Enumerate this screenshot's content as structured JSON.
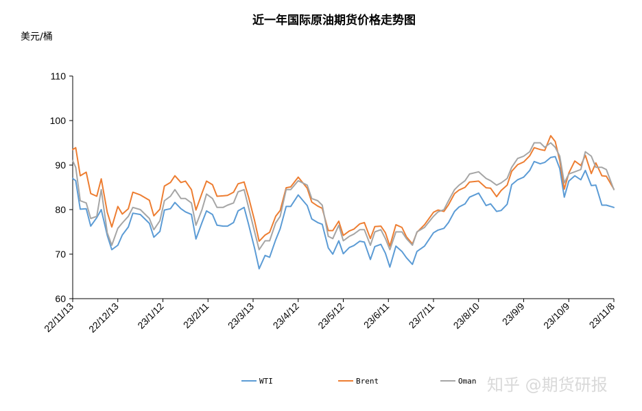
{
  "chart_data": {
    "type": "line",
    "title": "近一年国际原油期货价格走势图",
    "ylabel": "美元/桶",
    "ylim": [
      60,
      110
    ],
    "yticks": [
      60,
      70,
      80,
      90,
      100,
      110
    ],
    "grid": false,
    "legend_position": "bottom",
    "x_tick_labels": [
      "22/11/13",
      "22/12/13",
      "23/1/12",
      "23/2/11",
      "23/3/13",
      "23/4/12",
      "23/5/12",
      "23/6/11",
      "23/7/11",
      "23/8/10",
      "23/9/9",
      "23/10/9",
      "23/11/8"
    ],
    "x_tick_dates": [
      "2022-11-13",
      "2022-12-13",
      "2023-01-12",
      "2023-02-11",
      "2023-03-13",
      "2023-04-12",
      "2023-05-12",
      "2023-06-11",
      "2023-07-11",
      "2023-08-10",
      "2023-09-09",
      "2023-10-09",
      "2023-11-08"
    ],
    "series": [
      {
        "name": "WTI",
        "color": "#5b9bd5",
        "x": [
          "2022-11-13",
          "2022-11-15",
          "2022-11-18",
          "2022-11-22",
          "2022-11-25",
          "2022-11-29",
          "2022-12-02",
          "2022-12-06",
          "2022-12-09",
          "2022-12-13",
          "2022-12-16",
          "2022-12-20",
          "2022-12-23",
          "2022-12-28",
          "2023-01-03",
          "2023-01-06",
          "2023-01-10",
          "2023-01-13",
          "2023-01-17",
          "2023-01-20",
          "2023-01-24",
          "2023-01-27",
          "2023-01-31",
          "2023-02-03",
          "2023-02-07",
          "2023-02-10",
          "2023-02-14",
          "2023-02-17",
          "2023-02-21",
          "2023-02-24",
          "2023-02-28",
          "2023-03-03",
          "2023-03-07",
          "2023-03-10",
          "2023-03-14",
          "2023-03-17",
          "2023-03-21",
          "2023-03-24",
          "2023-03-28",
          "2023-03-31",
          "2023-04-04",
          "2023-04-07",
          "2023-04-12",
          "2023-04-18",
          "2023-04-21",
          "2023-04-25",
          "2023-04-28",
          "2023-05-02",
          "2023-05-05",
          "2023-05-09",
          "2023-05-12",
          "2023-05-16",
          "2023-05-19",
          "2023-05-23",
          "2023-05-26",
          "2023-05-30",
          "2023-06-02",
          "2023-06-06",
          "2023-06-09",
          "2023-06-12",
          "2023-06-16",
          "2023-06-20",
          "2023-06-23",
          "2023-06-27",
          "2023-06-30",
          "2023-07-05",
          "2023-07-11",
          "2023-07-14",
          "2023-07-18",
          "2023-07-21",
          "2023-07-25",
          "2023-07-28",
          "2023-08-01",
          "2023-08-04",
          "2023-08-10",
          "2023-08-15",
          "2023-08-18",
          "2023-08-22",
          "2023-08-25",
          "2023-08-29",
          "2023-09-01",
          "2023-09-05",
          "2023-09-09",
          "2023-09-13",
          "2023-09-16",
          "2023-09-20",
          "2023-09-23",
          "2023-09-27",
          "2023-09-30",
          "2023-10-03",
          "2023-10-06",
          "2023-10-09",
          "2023-10-13",
          "2023-10-17",
          "2023-10-20",
          "2023-10-24",
          "2023-10-27",
          "2023-10-31",
          "2023-11-03",
          "2023-11-08"
        ],
        "values": [
          87.0,
          86.5,
          80.1,
          80.2,
          76.3,
          78.2,
          80.0,
          74.2,
          71.0,
          72.0,
          74.3,
          76.1,
          79.2,
          78.9,
          76.9,
          73.8,
          75.1,
          79.9,
          80.2,
          81.6,
          80.2,
          79.5,
          78.9,
          73.4,
          77.1,
          79.7,
          78.9,
          76.5,
          76.3,
          76.3,
          77.1,
          79.7,
          80.5,
          76.7,
          71.3,
          66.7,
          69.7,
          69.3,
          73.2,
          75.7,
          80.7,
          80.7,
          83.3,
          80.9,
          77.9,
          77.1,
          76.7,
          71.4,
          70.0,
          73.0,
          70.1,
          71.5,
          71.9,
          72.9,
          72.7,
          68.8,
          71.7,
          72.2,
          70.2,
          67.1,
          71.8,
          70.6,
          69.2,
          67.7,
          70.6,
          71.8,
          74.8,
          75.4,
          75.8,
          77.1,
          79.6,
          80.6,
          81.3,
          82.8,
          83.7,
          80.9,
          81.3,
          79.6,
          79.8,
          81.2,
          85.6,
          86.7,
          87.3,
          88.8,
          90.8,
          90.3,
          90.6,
          91.7,
          91.9,
          89.2,
          82.8,
          86.4,
          87.6,
          86.7,
          88.8,
          85.4,
          85.5,
          81.0,
          81.0,
          80.5
        ]
      },
      {
        "name": "Brent",
        "color": "#ed7d31",
        "x": [
          "2022-11-13",
          "2022-11-15",
          "2022-11-18",
          "2022-11-22",
          "2022-11-25",
          "2022-11-29",
          "2022-12-02",
          "2022-12-06",
          "2022-12-09",
          "2022-12-13",
          "2022-12-16",
          "2022-12-20",
          "2022-12-23",
          "2022-12-28",
          "2023-01-03",
          "2023-01-06",
          "2023-01-10",
          "2023-01-13",
          "2023-01-17",
          "2023-01-20",
          "2023-01-24",
          "2023-01-27",
          "2023-01-31",
          "2023-02-03",
          "2023-02-07",
          "2023-02-10",
          "2023-02-14",
          "2023-02-17",
          "2023-02-21",
          "2023-02-24",
          "2023-02-28",
          "2023-03-03",
          "2023-03-07",
          "2023-03-10",
          "2023-03-14",
          "2023-03-17",
          "2023-03-21",
          "2023-03-24",
          "2023-03-28",
          "2023-03-31",
          "2023-04-04",
          "2023-04-07",
          "2023-04-12",
          "2023-04-18",
          "2023-04-21",
          "2023-04-25",
          "2023-04-28",
          "2023-05-02",
          "2023-05-05",
          "2023-05-09",
          "2023-05-12",
          "2023-05-16",
          "2023-05-19",
          "2023-05-23",
          "2023-05-26",
          "2023-05-30",
          "2023-06-02",
          "2023-06-06",
          "2023-06-09",
          "2023-06-12",
          "2023-06-16",
          "2023-06-20",
          "2023-06-23",
          "2023-06-27",
          "2023-06-30",
          "2023-07-05",
          "2023-07-11",
          "2023-07-14",
          "2023-07-18",
          "2023-07-21",
          "2023-07-25",
          "2023-07-28",
          "2023-08-01",
          "2023-08-04",
          "2023-08-10",
          "2023-08-15",
          "2023-08-18",
          "2023-08-22",
          "2023-08-25",
          "2023-08-29",
          "2023-09-01",
          "2023-09-05",
          "2023-09-09",
          "2023-09-13",
          "2023-09-16",
          "2023-09-20",
          "2023-09-23",
          "2023-09-27",
          "2023-09-30",
          "2023-10-03",
          "2023-10-06",
          "2023-10-09",
          "2023-10-13",
          "2023-10-17",
          "2023-10-20",
          "2023-10-24",
          "2023-10-27",
          "2023-10-31",
          "2023-11-03",
          "2023-11-08"
        ],
        "values": [
          93.5,
          93.9,
          87.6,
          88.4,
          83.6,
          83.0,
          86.9,
          79.4,
          76.1,
          80.7,
          79.0,
          80.2,
          83.9,
          83.3,
          82.1,
          78.6,
          80.1,
          85.3,
          86.1,
          87.6,
          86.1,
          86.4,
          84.5,
          79.9,
          83.7,
          86.4,
          85.6,
          83.0,
          83.1,
          83.2,
          83.9,
          85.8,
          86.2,
          82.8,
          77.5,
          72.9,
          74.3,
          74.9,
          78.5,
          79.8,
          84.9,
          85.1,
          87.3,
          84.8,
          81.7,
          80.8,
          80.3,
          75.3,
          75.3,
          77.4,
          74.2,
          75.2,
          75.6,
          76.8,
          77.1,
          73.5,
          76.2,
          76.3,
          74.8,
          71.8,
          76.6,
          76.0,
          73.9,
          72.3,
          74.9,
          76.6,
          79.4,
          79.9,
          79.6,
          81.1,
          83.6,
          84.4,
          85.0,
          86.2,
          86.4,
          84.9,
          84.8,
          82.9,
          84.3,
          85.5,
          88.6,
          90.1,
          90.7,
          92.1,
          93.9,
          93.5,
          93.3,
          96.6,
          95.3,
          91.0,
          84.6,
          88.2,
          90.9,
          89.9,
          92.2,
          88.1,
          90.5,
          87.6,
          87.5,
          84.6
        ]
      },
      {
        "name": "Oman",
        "color": "#a5a5a5",
        "x": [
          "2022-11-13",
          "2022-11-15",
          "2022-11-18",
          "2022-11-22",
          "2022-11-25",
          "2022-11-29",
          "2022-12-02",
          "2022-12-06",
          "2022-12-09",
          "2022-12-13",
          "2022-12-16",
          "2022-12-20",
          "2022-12-23",
          "2022-12-28",
          "2023-01-03",
          "2023-01-06",
          "2023-01-10",
          "2023-01-13",
          "2023-01-17",
          "2023-01-20",
          "2023-01-24",
          "2023-01-27",
          "2023-01-31",
          "2023-02-03",
          "2023-02-07",
          "2023-02-10",
          "2023-02-14",
          "2023-02-17",
          "2023-02-21",
          "2023-02-24",
          "2023-02-28",
          "2023-03-03",
          "2023-03-07",
          "2023-03-10",
          "2023-03-14",
          "2023-03-17",
          "2023-03-21",
          "2023-03-24",
          "2023-03-28",
          "2023-03-31",
          "2023-04-04",
          "2023-04-07",
          "2023-04-12",
          "2023-04-18",
          "2023-04-21",
          "2023-04-25",
          "2023-04-28",
          "2023-05-02",
          "2023-05-05",
          "2023-05-09",
          "2023-05-12",
          "2023-05-16",
          "2023-05-19",
          "2023-05-23",
          "2023-05-26",
          "2023-05-30",
          "2023-06-02",
          "2023-06-06",
          "2023-06-09",
          "2023-06-12",
          "2023-06-16",
          "2023-06-20",
          "2023-06-23",
          "2023-06-27",
          "2023-06-30",
          "2023-07-05",
          "2023-07-11",
          "2023-07-14",
          "2023-07-18",
          "2023-07-21",
          "2023-07-25",
          "2023-07-28",
          "2023-08-01",
          "2023-08-04",
          "2023-08-10",
          "2023-08-15",
          "2023-08-18",
          "2023-08-22",
          "2023-08-25",
          "2023-08-29",
          "2023-09-01",
          "2023-09-05",
          "2023-09-09",
          "2023-09-13",
          "2023-09-16",
          "2023-09-20",
          "2023-09-23",
          "2023-09-27",
          "2023-09-30",
          "2023-10-03",
          "2023-10-06",
          "2023-10-09",
          "2023-10-13",
          "2023-10-17",
          "2023-10-20",
          "2023-10-24",
          "2023-10-27",
          "2023-10-31",
          "2023-11-03",
          "2023-11-08"
        ],
        "values": [
          91.0,
          89.5,
          82.0,
          81.5,
          78.0,
          78.5,
          84.5,
          74.8,
          72.0,
          75.8,
          77.0,
          78.5,
          80.5,
          80.0,
          78.0,
          75.5,
          77.5,
          82.0,
          83.0,
          84.5,
          82.5,
          82.5,
          81.5,
          76.5,
          80.0,
          83.5,
          82.5,
          80.5,
          80.5,
          81.0,
          81.5,
          84.0,
          84.5,
          80.5,
          75.0,
          71.0,
          73.0,
          73.0,
          77.0,
          78.5,
          84.5,
          84.5,
          86.5,
          85.5,
          82.5,
          82.0,
          81.0,
          74.0,
          73.5,
          76.5,
          73.0,
          74.0,
          74.5,
          75.5,
          75.5,
          72.0,
          75.0,
          75.5,
          73.5,
          71.0,
          75.0,
          75.0,
          73.5,
          72.0,
          75.0,
          76.0,
          78.5,
          79.5,
          80.0,
          82.0,
          84.5,
          85.5,
          86.5,
          88.0,
          88.5,
          87.0,
          86.5,
          85.5,
          86.0,
          87.0,
          89.5,
          91.5,
          92.0,
          93.0,
          95.0,
          95.0,
          94.0,
          95.0,
          94.0,
          92.0,
          86.0,
          88.0,
          88.5,
          89.0,
          93.0,
          92.0,
          89.5,
          89.5,
          89.0,
          84.5
        ]
      }
    ]
  },
  "watermark": "知乎 @期货研报"
}
